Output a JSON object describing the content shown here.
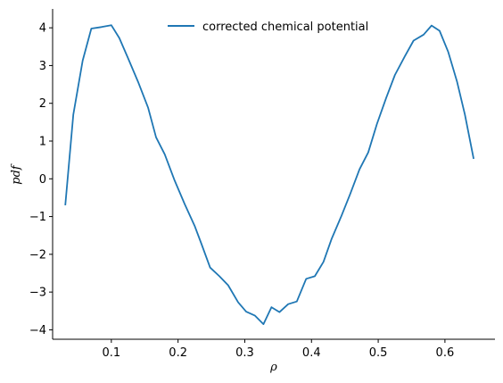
{
  "chart_data": {
    "type": "line",
    "xlabel": "ρ",
    "ylabel": "pdf",
    "xlim": [
      0.012,
      0.675
    ],
    "ylim": [
      -4.25,
      4.5
    ],
    "xticks": [
      0.1,
      0.2,
      0.3,
      0.4,
      0.5,
      0.6
    ],
    "xtick_labels": [
      "0.1",
      "0.2",
      "0.3",
      "0.4",
      "0.5",
      "0.6"
    ],
    "yticks": [
      -4,
      -3,
      -2,
      -1,
      0,
      1,
      2,
      3,
      4
    ],
    "ytick_labels": [
      "−4",
      "−3",
      "−2",
      "−1",
      "0",
      "1",
      "2",
      "3",
      "4"
    ],
    "grid": false,
    "legend_position": "top-center",
    "series": [
      {
        "name": "corrected chemical potential",
        "color": "#1f77b4",
        "x": [
          0.031,
          0.043,
          0.057,
          0.07,
          0.085,
          0.1,
          0.112,
          0.125,
          0.14,
          0.155,
          0.167,
          0.18,
          0.195,
          0.21,
          0.225,
          0.235,
          0.248,
          0.262,
          0.275,
          0.29,
          0.302,
          0.315,
          0.328,
          0.34,
          0.352,
          0.365,
          0.378,
          0.392,
          0.405,
          0.418,
          0.43,
          0.445,
          0.458,
          0.472,
          0.485,
          0.498,
          0.512,
          0.525,
          0.54,
          0.553,
          0.568,
          0.58,
          0.592,
          0.605,
          0.618,
          0.63,
          0.643
        ],
        "y": [
          -0.7,
          1.7,
          3.13,
          3.98,
          4.02,
          4.07,
          3.73,
          3.2,
          2.57,
          1.89,
          1.1,
          0.65,
          -0.05,
          -0.67,
          -1.25,
          -1.72,
          -2.35,
          -2.58,
          -2.82,
          -3.27,
          -3.52,
          -3.62,
          -3.85,
          -3.4,
          -3.53,
          -3.32,
          -3.25,
          -2.65,
          -2.58,
          -2.2,
          -1.6,
          -0.98,
          -0.4,
          0.25,
          0.7,
          1.45,
          2.15,
          2.75,
          3.25,
          3.66,
          3.82,
          4.06,
          3.92,
          3.36,
          2.58,
          1.7,
          0.53
        ]
      }
    ]
  }
}
